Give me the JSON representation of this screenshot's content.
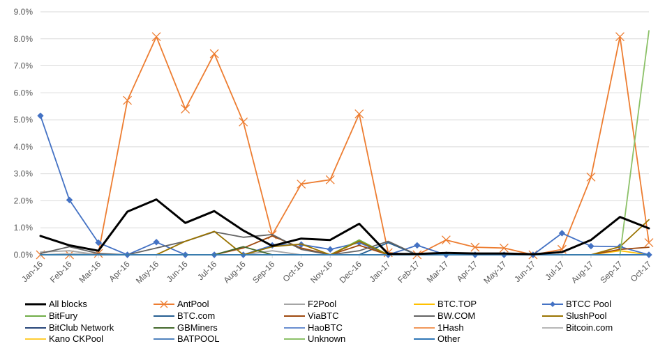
{
  "chart_data": {
    "type": "line",
    "title": "",
    "xlabel": "",
    "ylabel": "",
    "ylim": [
      0,
      9
    ],
    "y_ticks": [
      "0.0%",
      "1.0%",
      "2.0%",
      "3.0%",
      "4.0%",
      "5.0%",
      "6.0%",
      "7.0%",
      "8.0%",
      "9.0%"
    ],
    "grid": "horizontal",
    "legend_position": "bottom",
    "categories": [
      "Jan-16",
      "Feb-16",
      "Mar-16",
      "Apr-16",
      "May-16",
      "Jun-16",
      "Jul-16",
      "Aug-16",
      "Sep-16",
      "Oct-16",
      "Nov-16",
      "Dec-16",
      "Jan-17",
      "Feb-17",
      "Mar-17",
      "Apr-17",
      "May-17",
      "Jun-17",
      "Jul-17",
      "Aug-17",
      "Sep-17",
      "Oct-17"
    ],
    "series": [
      {
        "name": "All blocks",
        "color": "#000000",
        "width": 3,
        "marker": "none",
        "values": [
          0.7,
          0.35,
          0.15,
          1.6,
          2.05,
          1.18,
          1.62,
          0.9,
          0.33,
          0.6,
          0.55,
          1.15,
          0.03,
          0.03,
          0.07,
          0.05,
          0.05,
          0.02,
          0.1,
          0.55,
          1.4,
          0.98
        ]
      },
      {
        "name": "AntPool",
        "color": "#ED7D31",
        "width": 1.8,
        "marker": "x",
        "values": [
          0.0,
          0.0,
          0.05,
          5.72,
          8.08,
          5.4,
          7.45,
          4.92,
          0.74,
          2.62,
          2.78,
          5.22,
          0.08,
          0.0,
          0.55,
          0.28,
          0.25,
          0.0,
          0.2,
          2.88,
          8.08,
          0.45
        ]
      },
      {
        "name": "F2Pool",
        "color": "#A5A5A5",
        "width": 1.8,
        "marker": "none",
        "values": [
          0.1,
          0.15,
          0.0,
          0.0,
          0.0,
          0.0,
          0.0,
          0.0,
          0.15,
          0.0,
          0.0,
          0.0,
          0.0,
          0.0,
          0.0,
          0.0,
          0.0,
          0.0,
          0.0,
          0.0,
          0.0,
          0.0
        ]
      },
      {
        "name": "BTC.TOP",
        "color": "#FFC000",
        "width": 1.8,
        "marker": "none",
        "values": [
          0.0,
          0.0,
          0.0,
          0.0,
          0.0,
          0.0,
          0.0,
          0.0,
          0.0,
          0.0,
          0.0,
          0.0,
          0.0,
          0.0,
          0.0,
          0.0,
          0.0,
          0.0,
          0.0,
          0.0,
          0.15,
          0.0
        ]
      },
      {
        "name": "BTCC Pool",
        "color": "#4472C4",
        "width": 1.8,
        "marker": "diamond",
        "values": [
          5.15,
          2.03,
          0.45,
          0.0,
          0.47,
          0.0,
          0.0,
          0.0,
          0.35,
          0.38,
          0.2,
          0.45,
          0.0,
          0.35,
          0.0,
          0.0,
          0.0,
          0.0,
          0.8,
          0.32,
          0.3,
          0.0
        ]
      },
      {
        "name": "BitFury",
        "color": "#70AD47",
        "width": 1.8,
        "marker": "none",
        "values": [
          0.0,
          0.0,
          0.0,
          0.0,
          0.0,
          0.0,
          0.0,
          0.0,
          0.0,
          0.0,
          0.0,
          0.55,
          0.0,
          0.0,
          0.0,
          0.0,
          0.0,
          0.0,
          0.0,
          0.0,
          0.0,
          0.0
        ]
      },
      {
        "name": "BTC.com",
        "color": "#255E91",
        "width": 1.8,
        "marker": "none",
        "values": [
          0.0,
          0.0,
          0.0,
          0.0,
          0.0,
          0.0,
          0.0,
          0.0,
          0.0,
          0.0,
          0.0,
          0.0,
          0.45,
          0.0,
          0.0,
          0.0,
          0.0,
          0.0,
          0.0,
          0.0,
          0.0,
          0.0
        ]
      },
      {
        "name": "ViaBTC",
        "color": "#9E480E",
        "width": 1.8,
        "marker": "none",
        "values": [
          0.0,
          0.0,
          0.0,
          0.0,
          0.0,
          0.0,
          0.0,
          0.25,
          0.7,
          0.25,
          0.0,
          0.35,
          0.0,
          0.0,
          0.0,
          0.0,
          0.0,
          0.0,
          0.0,
          0.0,
          0.2,
          0.28
        ]
      },
      {
        "name": "BW.COM",
        "color": "#636363",
        "width": 1.8,
        "marker": "none",
        "values": [
          0.05,
          0.3,
          0.05,
          0.0,
          0.25,
          0.5,
          0.85,
          0.65,
          0.75,
          0.2,
          0.0,
          0.15,
          0.5,
          0.0,
          0.0,
          0.0,
          0.0,
          0.0,
          0.0,
          0.0,
          0.0,
          0.0
        ]
      },
      {
        "name": "SlushPool",
        "color": "#997300",
        "width": 1.8,
        "marker": "none",
        "values": [
          0.0,
          0.0,
          0.0,
          0.0,
          0.0,
          0.5,
          0.87,
          0.0,
          0.3,
          0.4,
          0.0,
          0.5,
          0.0,
          0.0,
          0.0,
          0.0,
          0.0,
          0.0,
          0.0,
          0.0,
          0.3,
          1.3
        ]
      },
      {
        "name": "BitClub Network",
        "color": "#264478",
        "width": 1.8,
        "marker": "none",
        "values": [
          0.0,
          0.0,
          0.0,
          0.0,
          0.0,
          0.0,
          0.0,
          0.0,
          0.0,
          0.0,
          0.0,
          0.0,
          0.0,
          0.0,
          0.0,
          0.0,
          0.0,
          0.0,
          0.0,
          0.0,
          0.0,
          0.0
        ]
      },
      {
        "name": "GBMiners",
        "color": "#43682B",
        "width": 1.8,
        "marker": "none",
        "values": [
          0.0,
          0.0,
          0.0,
          0.0,
          0.0,
          0.0,
          0.0,
          0.3,
          0.0,
          0.0,
          0.0,
          0.0,
          0.0,
          0.0,
          0.0,
          0.0,
          0.0,
          0.0,
          0.0,
          0.0,
          0.0,
          0.0
        ]
      },
      {
        "name": "HaoBTC",
        "color": "#698ED0",
        "width": 1.8,
        "marker": "none",
        "values": [
          0.0,
          0.0,
          0.0,
          0.0,
          0.0,
          0.0,
          0.0,
          0.0,
          0.0,
          0.0,
          0.0,
          0.0,
          0.0,
          0.0,
          0.0,
          0.0,
          0.0,
          0.0,
          0.0,
          0.0,
          0.0,
          0.0
        ]
      },
      {
        "name": "1Hash",
        "color": "#F1975A",
        "width": 1.8,
        "marker": "none",
        "values": [
          0.0,
          0.0,
          0.0,
          0.0,
          0.0,
          0.0,
          0.0,
          0.0,
          0.0,
          0.0,
          0.0,
          0.0,
          0.0,
          0.0,
          0.0,
          0.0,
          0.0,
          0.0,
          0.0,
          0.0,
          0.0,
          0.0
        ]
      },
      {
        "name": "Bitcoin.com",
        "color": "#B7B7B7",
        "width": 1.8,
        "marker": "none",
        "values": [
          0.0,
          0.05,
          0.0,
          0.0,
          0.0,
          0.0,
          0.0,
          0.0,
          0.0,
          0.0,
          0.0,
          0.0,
          0.0,
          0.0,
          0.0,
          0.0,
          0.0,
          0.0,
          0.0,
          0.0,
          0.0,
          0.0
        ]
      },
      {
        "name": "Kano CKPool",
        "color": "#FFCD33",
        "width": 1.8,
        "marker": "none",
        "values": [
          0.0,
          0.0,
          0.0,
          0.0,
          0.0,
          0.0,
          0.0,
          0.0,
          0.0,
          0.0,
          0.0,
          0.0,
          0.0,
          0.0,
          0.0,
          0.0,
          0.0,
          0.0,
          0.0,
          0.0,
          0.0,
          0.0
        ]
      },
      {
        "name": "BATPOOL",
        "color": "#4F82BD",
        "width": 1.8,
        "marker": "none",
        "values": [
          0.0,
          0.0,
          0.0,
          0.0,
          0.0,
          0.0,
          0.0,
          0.0,
          0.0,
          0.0,
          0.0,
          0.0,
          0.0,
          0.0,
          0.0,
          0.0,
          0.0,
          0.0,
          0.0,
          0.0,
          0.0,
          0.0
        ]
      },
      {
        "name": "Unknown",
        "color": "#8CC168",
        "width": 1.8,
        "marker": "none",
        "values": [
          0.0,
          0.0,
          0.0,
          0.0,
          0.0,
          0.0,
          0.0,
          0.0,
          0.0,
          0.0,
          0.0,
          0.0,
          0.0,
          0.0,
          0.0,
          0.0,
          0.0,
          0.0,
          0.0,
          0.0,
          0.0,
          8.3
        ]
      },
      {
        "name": "Other",
        "color": "#2E75B6",
        "width": 1.8,
        "marker": "none",
        "values": [
          0.0,
          0.0,
          0.0,
          0.0,
          0.0,
          0.0,
          0.0,
          0.0,
          0.0,
          0.0,
          0.0,
          0.0,
          0.0,
          0.0,
          0.0,
          0.0,
          0.0,
          0.0,
          0.0,
          0.0,
          0.0,
          0.0
        ]
      }
    ]
  }
}
